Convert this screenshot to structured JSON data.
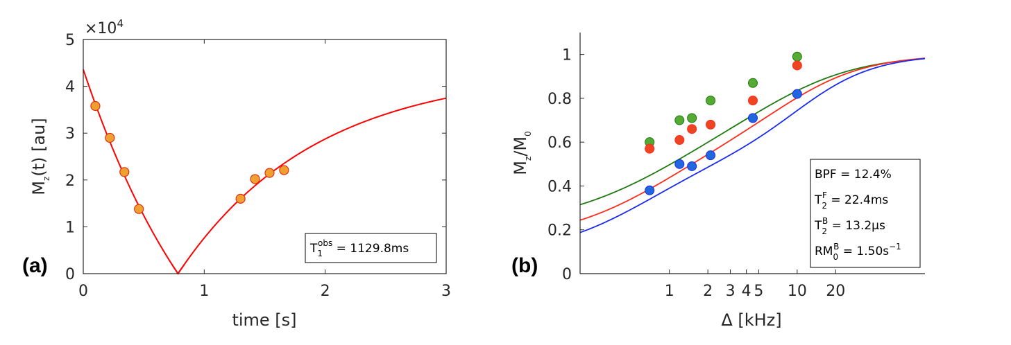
{
  "chart_data": [
    {
      "type": "scatter",
      "panel_label": "(a)",
      "xlabel": "time [s]",
      "ylabel": {
        "main": "M",
        "sub": "z",
        "rest": "(t) [au]"
      },
      "exponent_label": {
        "prefix": "×10",
        "power": "4"
      },
      "xlim": [
        0,
        3
      ],
      "ylim": [
        0,
        5
      ],
      "xticks": [
        0,
        1,
        2,
        3
      ],
      "yticks": [
        0,
        1,
        2,
        3,
        4,
        5
      ],
      "x_tick_labels": [
        "0",
        "1",
        "2",
        "3"
      ],
      "y_tick_labels": [
        "0",
        "1",
        "2",
        "3",
        "4",
        "5"
      ],
      "y_scale_factor": 10000,
      "points": {
        "color": "#F0A030",
        "edge": "#E03010",
        "x": [
          0.1,
          0.22,
          0.34,
          0.46,
          1.3,
          1.42,
          1.54,
          1.66
        ],
        "y": [
          3.58,
          2.9,
          2.17,
          1.38,
          1.6,
          2.02,
          2.15,
          2.21
        ]
      },
      "fit": {
        "color": "#FF0000",
        "M0": 4.36,
        "zero_crossing": 0.783,
        "T1_s": 1.1298
      },
      "legend": {
        "sym": "T",
        "sub": "1",
        "sup": "obs",
        "value": " = 1129.8ms"
      }
    },
    {
      "type": "scatter",
      "panel_label": "(b)",
      "xlabel": "Δ [kHz]",
      "ylabel": {
        "main": "M",
        "sub": "z",
        "rest": "/M",
        "sub2": "0"
      },
      "x_scale": "log",
      "xlim": [
        0.2,
        100
      ],
      "ylim": [
        0,
        1.1
      ],
      "xticks": [
        1,
        2,
        3,
        4,
        5,
        10,
        20
      ],
      "x_tick_labels": [
        "1",
        "2",
        "3",
        "4",
        "5",
        "10",
        "20"
      ],
      "yticks": [
        0,
        0.2,
        0.4,
        0.6,
        0.8,
        1
      ],
      "y_tick_labels": [
        "0",
        "0.2",
        "0.4",
        "0.6",
        "0.8",
        "1"
      ],
      "series": [
        {
          "name": "green",
          "color": "#55AA33",
          "line_color": "#1E7A10",
          "x": [
            0.7,
            1.2,
            1.5,
            2.1,
            4.5,
            10
          ],
          "y": [
            0.6,
            0.7,
            0.71,
            0.79,
            0.87,
            0.99
          ]
        },
        {
          "name": "red",
          "color": "#EE4422",
          "line_color": "#FF2A1A",
          "x": [
            0.7,
            1.2,
            1.5,
            2.1,
            4.5,
            10
          ],
          "y": [
            0.57,
            0.61,
            0.66,
            0.68,
            0.79,
            0.95
          ]
        },
        {
          "name": "blue",
          "color": "#2266DD",
          "line_color": "#1A2AF0",
          "x": [
            0.7,
            1.2,
            1.5,
            2.1,
            4.5,
            10
          ],
          "y": [
            0.38,
            0.5,
            0.49,
            0.54,
            0.71,
            0.82
          ]
        }
      ],
      "curves": [
        {
          "name": "green",
          "y0": 0.21,
          "plateau": 0.725,
          "a1": 0.95,
          "s1": 0.48,
          "a2": 7.2,
          "s2": 0.36
        },
        {
          "name": "red",
          "y0": 0.15,
          "plateau": 0.635,
          "a1": 0.82,
          "s1": 0.42,
          "a2": 8.5,
          "s2": 0.33
        },
        {
          "name": "blue",
          "y0": 0.08,
          "plateau": 0.555,
          "a1": 0.63,
          "s1": 0.4,
          "a2": 10.7,
          "s2": 0.3
        }
      ],
      "legend": [
        {
          "sym": "BPF",
          "sub": "",
          "sup": "",
          "value": " = 12.4%"
        },
        {
          "sym": "T",
          "sub": "2",
          "sup": "F",
          "value": " = 22.4ms"
        },
        {
          "sym": "T",
          "sub": "2",
          "sup": "B",
          "value": " = 13.2μs"
        },
        {
          "sym": "RM",
          "sub": "0",
          "sup": "B",
          "value": " = 1.50s",
          "power": "−1"
        }
      ]
    }
  ]
}
